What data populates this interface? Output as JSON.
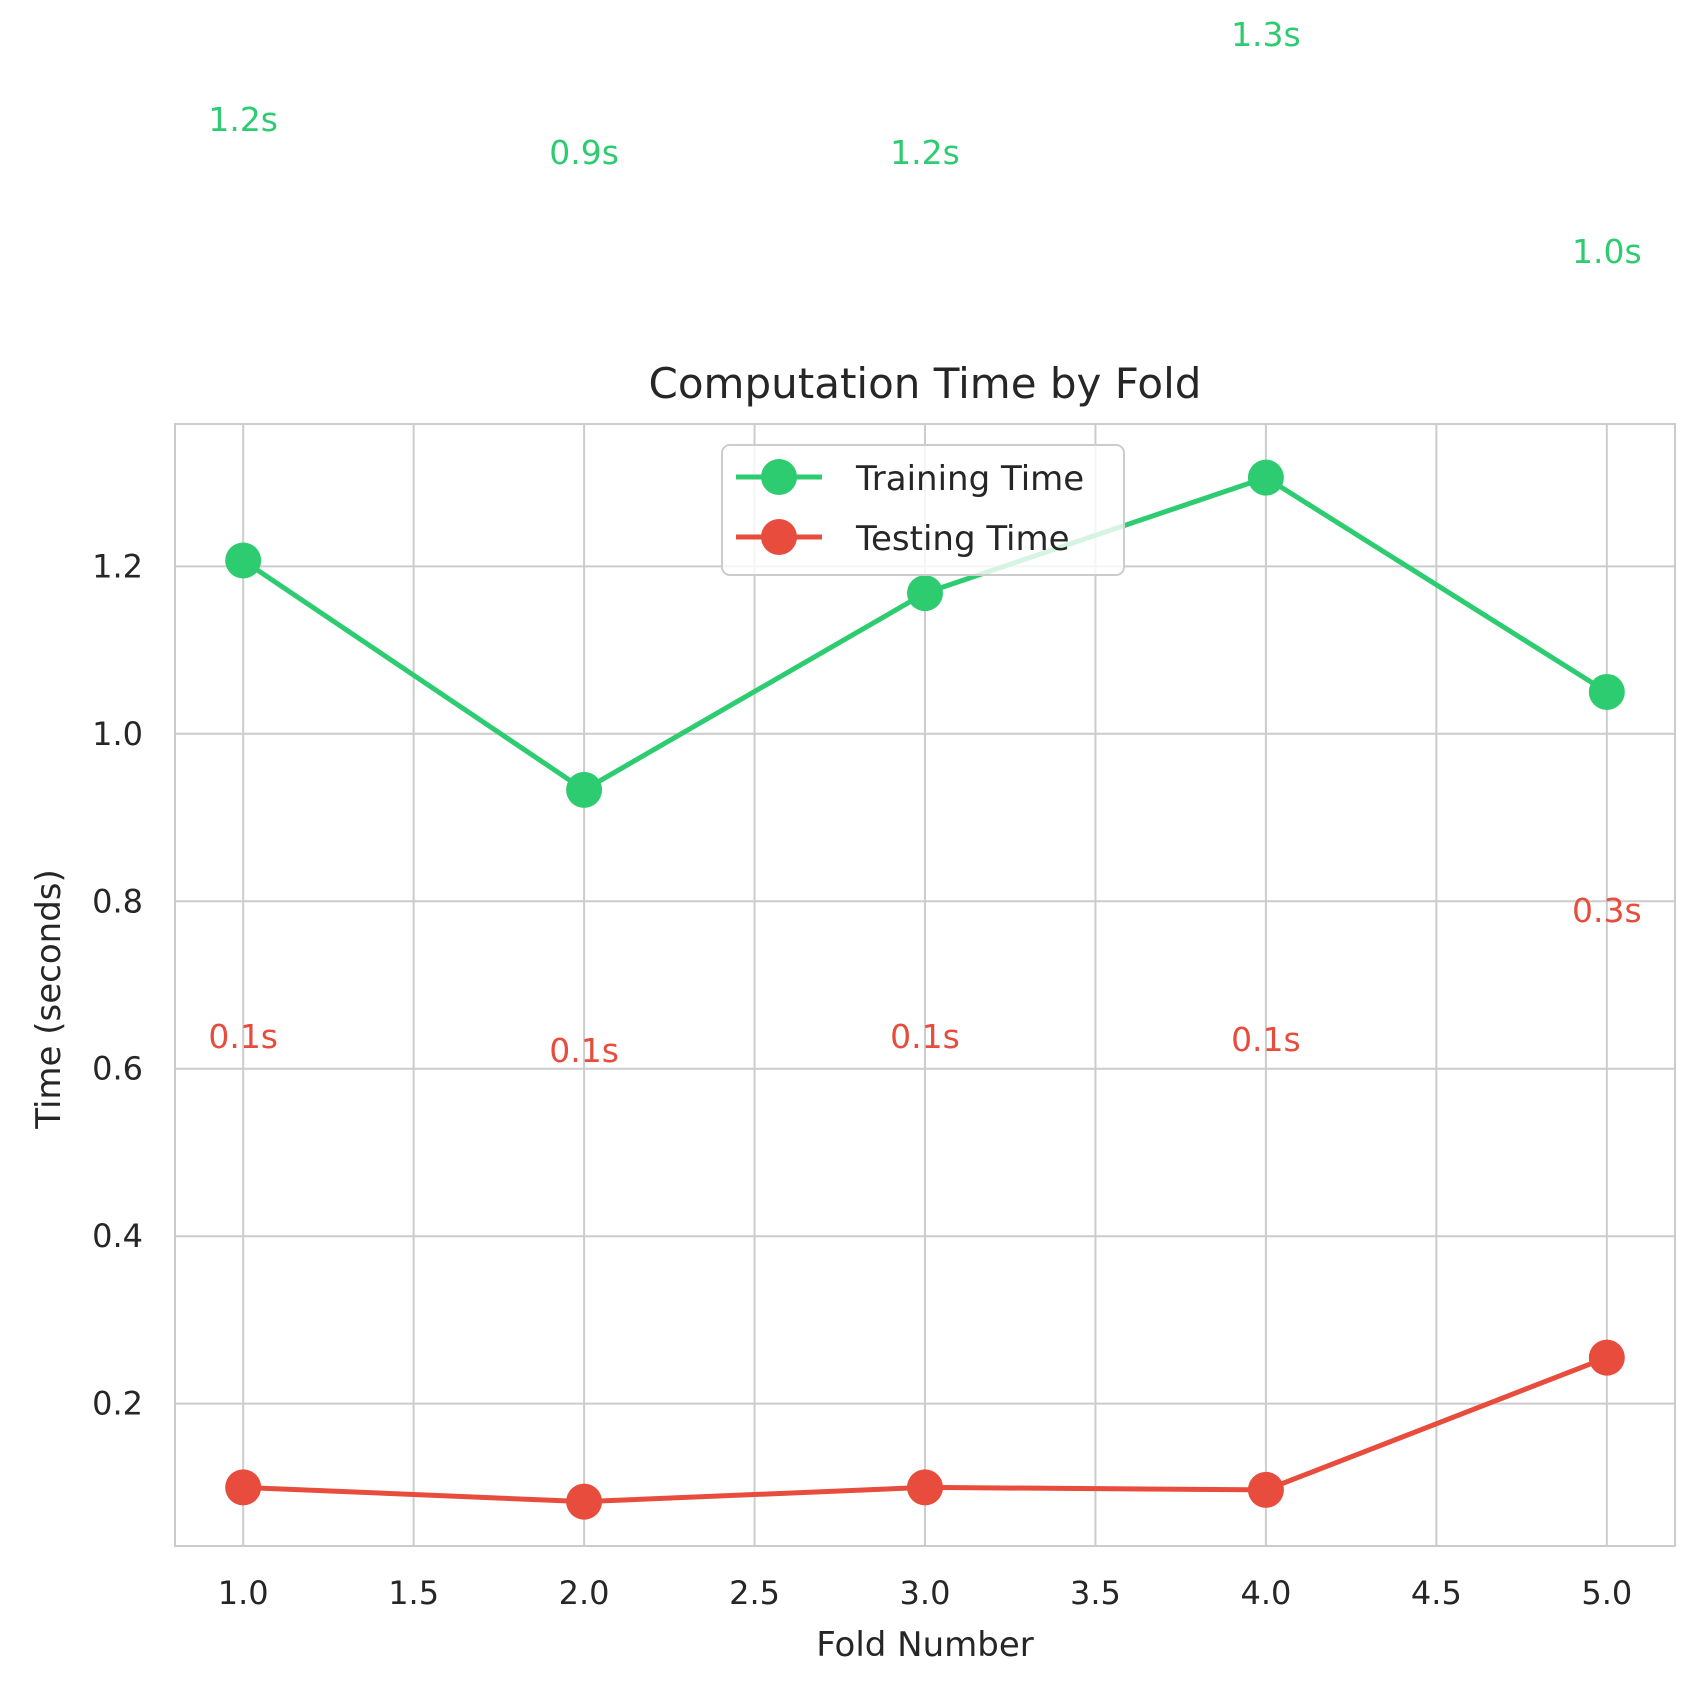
{
  "chart_data": {
    "type": "line",
    "title": "Computation Time by Fold",
    "xlabel": "Fold Number",
    "ylabel": "Time (seconds)",
    "x": [
      1,
      2,
      3,
      4,
      5
    ],
    "xlim": [
      0.8,
      5.2
    ],
    "ylim": [
      0.03,
      1.37
    ],
    "xticks": [
      1.0,
      1.5,
      2.0,
      2.5,
      3.0,
      3.5,
      4.0,
      4.5,
      5.0
    ],
    "xtick_labels": [
      "1.0",
      "1.5",
      "2.0",
      "2.5",
      "3.0",
      "3.5",
      "4.0",
      "4.5",
      "5.0"
    ],
    "yticks": [
      0.2,
      0.4,
      0.6,
      0.8,
      1.0,
      1.2
    ],
    "ytick_labels": [
      "0.2",
      "0.4",
      "0.6",
      "0.8",
      "1.0",
      "1.2"
    ],
    "grid": true,
    "legend_position": "top-center",
    "series": [
      {
        "name": "Training Time",
        "color": "#2ecc71",
        "marker": "circle",
        "values": [
          1.207,
          0.933,
          1.168,
          1.306,
          1.05
        ],
        "data_labels": [
          "1.2s",
          "0.9s",
          "1.2s",
          "1.3s",
          "1.0s"
        ]
      },
      {
        "name": "Testing Time",
        "color": "#e74c3c",
        "marker": "circle",
        "values": [
          0.1,
          0.083,
          0.1,
          0.097,
          0.255
        ],
        "data_labels": [
          "0.1s",
          "0.1s",
          "0.1s",
          "0.1s",
          "0.3s"
        ]
      }
    ]
  }
}
